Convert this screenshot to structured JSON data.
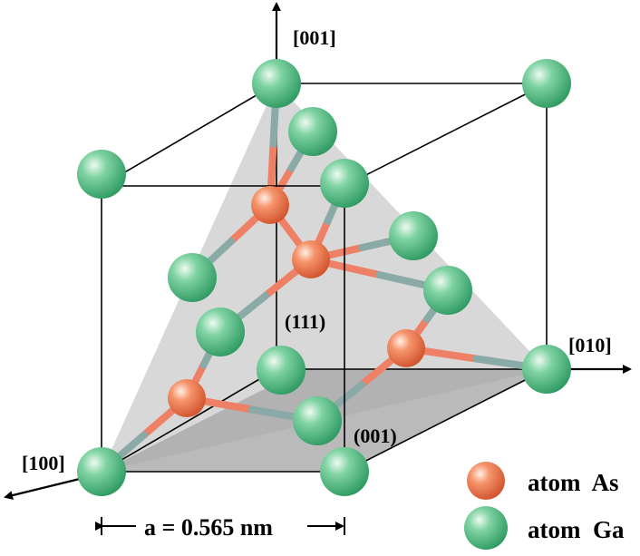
{
  "axes": {
    "z": "[001]",
    "y": "[010]",
    "x": "[100]"
  },
  "planes": {
    "p111": "(111)",
    "p001": "(001)"
  },
  "dimension": "a = 0.565 nm",
  "legend": [
    {
      "label": "atom  As",
      "color": "#f28a63"
    },
    {
      "label": "atom  Ga",
      "color": "#5fc08c"
    }
  ],
  "colors": {
    "as_atom": "#f28a63",
    "ga_atom": "#5fc08c",
    "bond_ga": "#8aaaa8",
    "bond_as": "#ee8066",
    "plane_111": "#d6d6d6",
    "plane_001": "#a8a8a8"
  }
}
